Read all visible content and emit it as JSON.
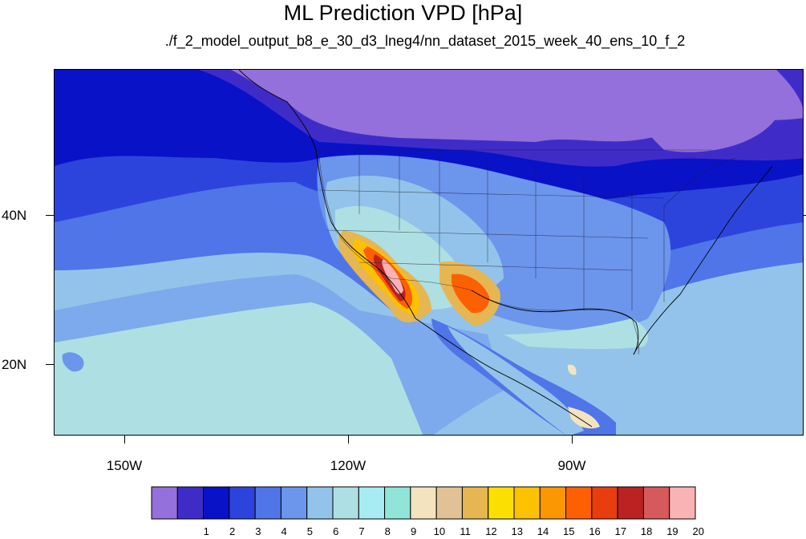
{
  "title": "ML Prediction VPD [hPa]",
  "subtitle": "./f_2_model_output_b8_e_30_d3_lneg4/nn_dataset_2015_week_40_ens_10_f_2",
  "lon_labels": [
    "150W",
    "120W",
    "90W"
  ],
  "lat_labels": [
    "40N",
    "20N"
  ],
  "colorbar": {
    "labels": [
      "1",
      "2",
      "3",
      "4",
      "5",
      "6",
      "7",
      "8",
      "9",
      "10",
      "11",
      "12",
      "13",
      "14",
      "15",
      "16",
      "17",
      "18",
      "19",
      "20"
    ],
    "colors": [
      "#9370DB",
      "#3F2CC8",
      "#0A12C8",
      "#2D44DC",
      "#4F75E8",
      "#6C95EC",
      "#93C3EA",
      "#AEDFE3",
      "#A7ECF2",
      "#91E4D8",
      "#F3E4BF",
      "#E1C296",
      "#E6B652",
      "#FBDF00",
      "#FCC100",
      "#FB9702",
      "#FC6003",
      "#E73D0F",
      "#BB2222",
      "#D6595B",
      "#F9B3B5"
    ]
  },
  "map_colors": {
    "ocean_deep": "#0A12C8",
    "ocean_mid": "#2D44DC",
    "ocean_light": "#4F75E8",
    "ocean_pale": "#6C95EC",
    "ocean_cyan": "#93C3EA",
    "ocean_aqua": "#AEDFE3",
    "north_purple": "#9370DB",
    "north_violet": "#3F2CC8"
  }
}
